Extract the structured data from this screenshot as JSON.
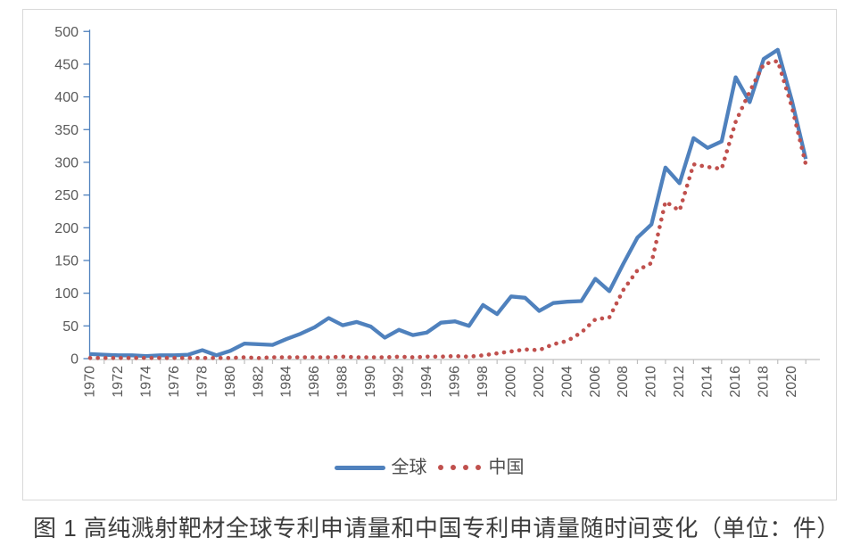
{
  "caption": {
    "text": "图 1  高纯溅射靶材全球专利申请量和中国专利申请量随时间变化（单位：件）"
  },
  "colors": {
    "global_series": "#4f81bd",
    "china_series": "#c0504d",
    "axis_gray": "#bfbfbf",
    "frame_gray": "#d9d9d9",
    "tick_text": "#595959"
  },
  "chart_data": {
    "type": "line",
    "title": "",
    "xlabel": "",
    "ylabel": "",
    "x": [
      1970,
      1971,
      1972,
      1973,
      1974,
      1975,
      1976,
      1977,
      1978,
      1979,
      1980,
      1981,
      1982,
      1983,
      1984,
      1985,
      1986,
      1987,
      1988,
      1989,
      1990,
      1991,
      1992,
      1993,
      1994,
      1995,
      1996,
      1997,
      1998,
      1999,
      2000,
      2001,
      2002,
      2003,
      2004,
      2005,
      2006,
      2007,
      2008,
      2009,
      2010,
      2011,
      2012,
      2013,
      2014,
      2015,
      2016,
      2017,
      2018,
      2019,
      2020,
      2021
    ],
    "series": [
      {
        "name": "全球",
        "style": "solid",
        "color": "#4f81bd",
        "values": [
          7,
          6,
          5,
          5,
          4,
          5,
          5,
          6,
          13,
          5,
          12,
          23,
          22,
          21,
          30,
          38,
          48,
          62,
          51,
          56,
          49,
          32,
          44,
          36,
          40,
          55,
          57,
          50,
          82,
          68,
          95,
          93,
          73,
          85,
          87,
          88,
          122,
          103,
          145,
          185,
          205,
          292,
          268,
          337,
          322,
          332,
          430,
          392,
          458,
          472,
          395,
          305
        ]
      },
      {
        "name": "中国",
        "style": "dotted",
        "color": "#c0504d",
        "values": [
          1,
          1,
          1,
          1,
          1,
          1,
          1,
          1,
          1,
          1,
          1,
          2,
          1,
          2,
          2,
          2,
          2,
          2,
          3,
          2,
          2,
          2,
          3,
          2,
          3,
          3,
          4,
          3,
          5,
          8,
          11,
          14,
          13,
          22,
          27,
          40,
          60,
          63,
          105,
          135,
          146,
          240,
          226,
          297,
          293,
          290,
          362,
          408,
          450,
          455,
          385,
          297
        ]
      }
    ],
    "ylim": [
      0,
      500
    ],
    "yticks": [
      0,
      50,
      100,
      150,
      200,
      250,
      300,
      350,
      400,
      450,
      500
    ],
    "xtick_labels": [
      "1970",
      "1972",
      "1974",
      "1976",
      "1978",
      "1980",
      "1982",
      "1984",
      "1986",
      "1988",
      "1990",
      "1992",
      "1994",
      "1996",
      "1998",
      "2000",
      "2002",
      "2004",
      "2006",
      "2008",
      "2010",
      "2012",
      "2014",
      "2016",
      "2018",
      "2020"
    ],
    "grid": false,
    "legend_position": "bottom"
  }
}
